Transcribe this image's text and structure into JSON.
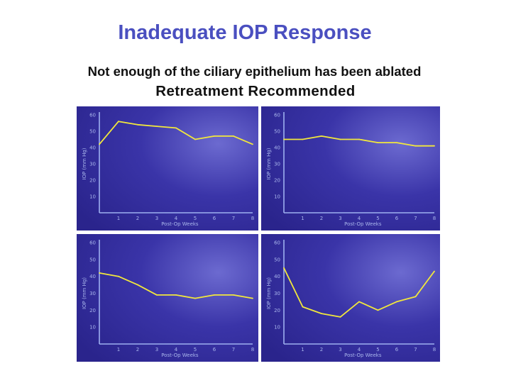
{
  "slide": {
    "title": "Inadequate IOP Response",
    "subtitle": "Not enough of the ciliary epithelium has been ablated",
    "subtitle2": "Retreatment Recommended"
  },
  "colors": {
    "title": "#4a4fc0",
    "panel_bg": "#2a248c",
    "axis": "#9eb0f0",
    "line": "#f2e83c"
  },
  "chart_data": [
    {
      "type": "line",
      "xlabel": "Post-Op Weeks",
      "ylabel": "IOP (mm Hg)",
      "x": [
        0,
        1,
        2,
        3,
        4,
        5,
        6,
        7,
        8
      ],
      "x_ticks": [
        "1",
        "2",
        "3",
        "4",
        "5",
        "6",
        "7",
        "8"
      ],
      "y_ticks": [
        "10",
        "20",
        "30",
        "40",
        "50",
        "60"
      ],
      "ylim": [
        0,
        60
      ],
      "xlim": [
        0,
        8
      ],
      "values": [
        42,
        56,
        54,
        53,
        52,
        45,
        47,
        47,
        42
      ]
    },
    {
      "type": "line",
      "xlabel": "Post-Op Weeks",
      "ylabel": "IOP (mm Hg)",
      "x": [
        0,
        1,
        2,
        3,
        4,
        5,
        6,
        7,
        8
      ],
      "x_ticks": [
        "1",
        "2",
        "3",
        "4",
        "5",
        "6",
        "7",
        "8"
      ],
      "y_ticks": [
        "10",
        "20",
        "30",
        "40",
        "50",
        "60"
      ],
      "ylim": [
        0,
        60
      ],
      "xlim": [
        0,
        8
      ],
      "values": [
        45,
        45,
        47,
        45,
        45,
        43,
        43,
        41,
        41
      ]
    },
    {
      "type": "line",
      "xlabel": "Post-Op Weeks",
      "ylabel": "IOP (mm Hg)",
      "x": [
        0,
        1,
        2,
        3,
        4,
        5,
        6,
        7,
        8
      ],
      "x_ticks": [
        "1",
        "2",
        "3",
        "4",
        "5",
        "6",
        "7",
        "8"
      ],
      "y_ticks": [
        "10",
        "20",
        "30",
        "40",
        "50",
        "60"
      ],
      "ylim": [
        0,
        60
      ],
      "xlim": [
        0,
        8
      ],
      "values": [
        42,
        40,
        35,
        29,
        29,
        27,
        29,
        29,
        27
      ]
    },
    {
      "type": "line",
      "xlabel": "Post-Op Weeks",
      "ylabel": "IOP (mm Hg)",
      "x": [
        0,
        1,
        2,
        3,
        4,
        5,
        6,
        7,
        8
      ],
      "x_ticks": [
        "1",
        "2",
        "3",
        "4",
        "5",
        "6",
        "7",
        "8"
      ],
      "y_ticks": [
        "10",
        "20",
        "30",
        "40",
        "50",
        "60"
      ],
      "ylim": [
        0,
        60
      ],
      "xlim": [
        0,
        8
      ],
      "values": [
        45,
        22,
        18,
        16,
        25,
        20,
        25,
        28,
        43
      ]
    }
  ]
}
